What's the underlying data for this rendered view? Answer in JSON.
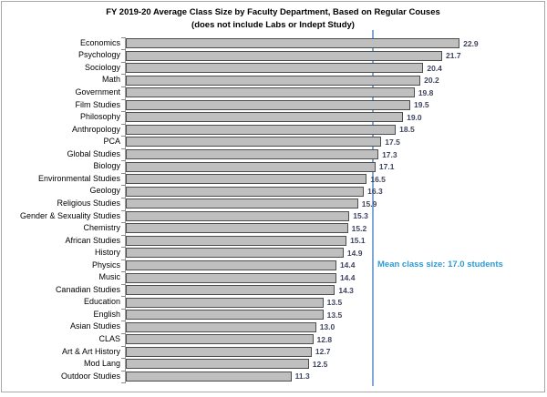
{
  "chart_data": {
    "type": "bar",
    "orientation": "horizontal",
    "title": "FY 2019-20 Average Class Size by Faculty Department, Based on Regular Couses",
    "subtitle": "(does not include Labs or Indept Study)",
    "categories": [
      "Economics",
      "Psychology",
      "Sociology",
      "Math",
      "Government",
      "Film Studies",
      "Philosophy",
      "Anthropology",
      "PCA",
      "Global Studies",
      "Biology",
      "Environmental Studies",
      "Geology",
      "Religious Studies",
      "Gender & Sexuality Studies",
      "Chemistry",
      "African Studies",
      "History",
      "Physics",
      "Music",
      "Canadian Studies",
      "Education",
      "English",
      "Asian Studies",
      "CLAS",
      "Art & Art History",
      "Mod Lang",
      "Outdoor Studies"
    ],
    "values": [
      22.9,
      21.7,
      20.4,
      20.2,
      19.8,
      19.5,
      19.0,
      18.5,
      17.5,
      17.3,
      17.1,
      16.5,
      16.3,
      15.9,
      15.3,
      15.2,
      15.1,
      14.9,
      14.4,
      14.4,
      14.3,
      13.5,
      13.5,
      13.0,
      12.8,
      12.7,
      12.5,
      11.3
    ],
    "value_label_decimals": 1,
    "xlim": [
      0,
      27.7
    ],
    "grid": "off",
    "legend": "none",
    "bar_fill_color": "#bfbfbf",
    "bar_border_color": "#4d4d4d",
    "value_label_color": "#3f4460",
    "mean_line": {
      "value": 17.0,
      "label": "Mean class size: 17.0 students",
      "line_color": "#7fa8d9",
      "label_color": "#2d9bd7"
    }
  }
}
